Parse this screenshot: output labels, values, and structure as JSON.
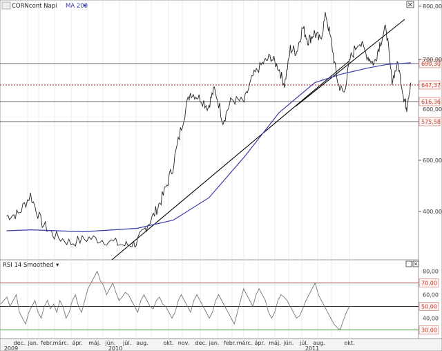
{
  "header": {
    "symbol_label": "CORNcont Napi",
    "indicator_label": "MA 200"
  },
  "rsi_panel": {
    "title": "RSI 14 Smoothed"
  },
  "colors": {
    "price": "#222222",
    "ma": "#3a3aa8",
    "trendline": "#000000",
    "price_dotted": "#c01818",
    "rsi": "#777777",
    "rsi_level_70": "#a04040",
    "rsi_level_50": "#333333",
    "rsi_level_30": "#3a9a3a",
    "grid": "#dddddd",
    "level_box_border": "#d89088",
    "level_box_bg": "#fdf2f0"
  },
  "chart_data": [
    {
      "type": "line",
      "title": "CORNcont Napi",
      "series": [
        {
          "name": "CORNcont Napi",
          "x": [
            "2009-11-20",
            "2009-12-10",
            "2009-12-31",
            "2010-01-20",
            "2010-02-10",
            "2010-03-10",
            "2010-04-10",
            "2010-05-10",
            "2010-06-10",
            "2010-06-30",
            "2010-07-15",
            "2010-07-31",
            "2010-08-15",
            "2010-08-31",
            "2010-09-15",
            "2010-09-30",
            "2010-10-15",
            "2010-10-31",
            "2010-11-10",
            "2010-11-25",
            "2010-12-10",
            "2010-12-31",
            "2011-01-15",
            "2011-01-31",
            "2011-02-15",
            "2011-02-28",
            "2011-03-10",
            "2011-03-20",
            "2011-03-31",
            "2011-04-10",
            "2011-04-20",
            "2011-04-30",
            "2011-05-10",
            "2011-05-20",
            "2011-05-31",
            "2011-06-10",
            "2011-06-20",
            "2011-06-30",
            "2011-07-15",
            "2011-07-31",
            "2011-08-10",
            "2011-08-20",
            "2011-08-31",
            "2011-09-10",
            "2011-09-20",
            "2011-09-30",
            "2011-10-05",
            "2011-10-12"
          ],
          "values": [
            390,
            395,
            430,
            375,
            350,
            335,
            345,
            340,
            330,
            335,
            365,
            395,
            430,
            480,
            555,
            620,
            610,
            590,
            630,
            565,
            605,
            600,
            660,
            690,
            705,
            680,
            640,
            720,
            715,
            760,
            735,
            750,
            735,
            785,
            720,
            640,
            620,
            700,
            735,
            705,
            690,
            730,
            760,
            650,
            690,
            610,
            590,
            645
          ]
        },
        {
          "name": "MA 200",
          "x": [
            "2009-11-20",
            "2010-01-01",
            "2010-04-01",
            "2010-07-01",
            "2010-09-01",
            "2010-11-01",
            "2011-01-01",
            "2011-03-01",
            "2011-05-01",
            "2011-06-15",
            "2011-08-01",
            "2011-09-01",
            "2011-10-12"
          ],
          "values": [
            360,
            362,
            358,
            365,
            382,
            425,
            500,
            580,
            645,
            665,
            680,
            688,
            692
          ]
        }
      ],
      "reference_levels": [
        {
          "label": "690,30",
          "value": 690.3
        },
        {
          "label": "647,37",
          "value": 647.37
        },
        {
          "label": "616,36",
          "value": 616.36
        },
        {
          "label": "575,58",
          "value": 575.58
        }
      ],
      "y_axis_ticks": [
        "800,00",
        "700,00",
        "600,00",
        "400,00"
      ],
      "x_axis_labels": [
        "dec.",
        "jan.",
        "febr.",
        "márc.",
        "ápr.",
        "máj.",
        "jún.",
        "júl.",
        "aug.",
        "okt.",
        "nov.",
        "dec.",
        "jan.",
        "febr.",
        "márc.",
        "ápr.",
        "máj.",
        "jún.",
        "júl.",
        "aug.",
        "okt."
      ],
      "x_axis_years": [
        "2009",
        "2010",
        "2011"
      ]
    },
    {
      "type": "line",
      "title": "RSI 14 Smoothed",
      "series": [
        {
          "name": "RSI 14 Smoothed",
          "values": [
            52,
            55,
            58,
            50,
            55,
            60,
            45,
            40,
            35,
            45,
            50,
            55,
            45,
            40,
            50,
            55,
            48,
            52,
            45,
            55,
            50,
            40,
            45,
            55,
            60,
            50,
            45,
            55,
            65,
            70,
            75,
            80,
            72,
            68,
            60,
            65,
            70,
            62,
            55,
            58,
            62,
            60,
            55,
            50,
            45,
            55,
            60,
            55,
            50,
            48,
            55,
            58,
            52,
            50,
            45,
            40,
            45,
            55,
            60,
            55,
            50,
            45,
            55,
            60,
            55,
            50,
            45,
            40,
            45,
            55,
            60,
            55,
            50,
            45,
            40,
            35,
            45,
            55,
            65,
            60,
            55,
            50,
            60,
            65,
            60,
            55,
            45,
            40,
            45,
            55,
            60,
            58,
            55,
            50,
            45,
            40,
            42,
            48,
            55,
            60,
            65,
            70,
            60,
            55,
            50,
            45,
            40,
            35,
            32,
            30,
            38,
            45,
            50
          ]
        }
      ],
      "reference_levels": [
        {
          "label": "70,00",
          "value": 70
        },
        {
          "label": "50,00",
          "value": 50
        },
        {
          "label": "30,00",
          "value": 30
        }
      ],
      "y_axis_ticks": [
        "80,00",
        "60,00",
        "40,00"
      ],
      "ylim": [
        25,
        85
      ]
    }
  ]
}
